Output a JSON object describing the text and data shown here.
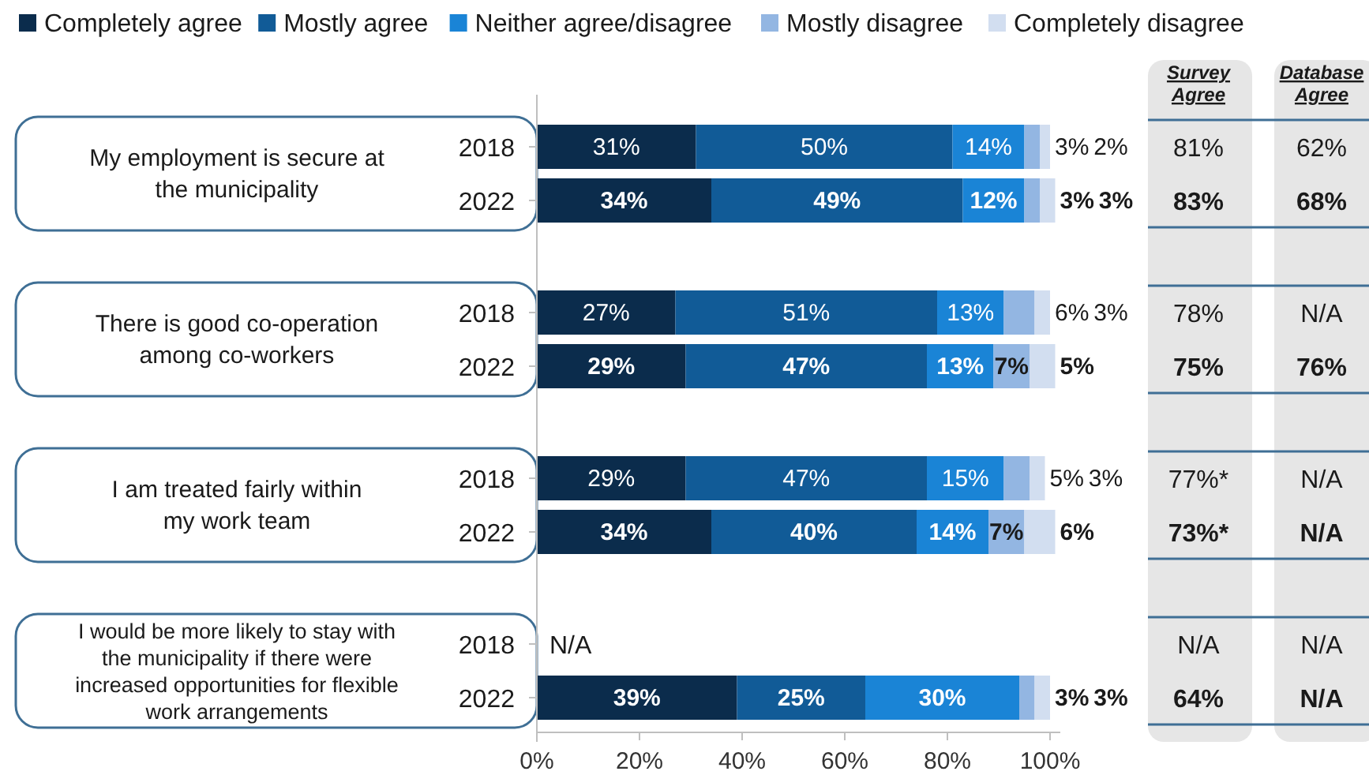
{
  "chart_data": {
    "type": "bar",
    "orientation": "horizontal",
    "stacked": true,
    "legend": "top left",
    "categories": [
      "2018",
      "2022",
      "2018",
      "2022",
      "2018",
      "2022",
      "2018",
      "2022"
    ],
    "series": [
      {
        "name": "Completely agree",
        "color": "#0b2c4c",
        "values": [
          31,
          34,
          27,
          29,
          29,
          34,
          null,
          39
        ],
        "value_labels": [
          "31%",
          "34%",
          "27%",
          "29%",
          "29%",
          "34%",
          null,
          "39%"
        ]
      },
      {
        "name": "Mostly agree",
        "color": "#115b97",
        "values": [
          50,
          49,
          51,
          47,
          47,
          40,
          null,
          25
        ],
        "value_labels": [
          "50%",
          "49%",
          "51%",
          "47%",
          "47%",
          "40%",
          null,
          "25%"
        ]
      },
      {
        "name": "Neither agree/disagree",
        "color": "#1a84d6",
        "values": [
          14,
          12,
          13,
          13,
          15,
          14,
          null,
          30
        ],
        "value_labels": [
          "14%",
          "12%",
          "13%",
          "13%",
          "15%",
          "14%",
          null,
          "30%"
        ]
      },
      {
        "name": "Mostly disagree",
        "color": "#93b6e2",
        "values": [
          3,
          3,
          6,
          7,
          5,
          7,
          null,
          3
        ],
        "value_labels": [
          "3%",
          "3%",
          "6%",
          "7%",
          "5%",
          "7%",
          null,
          "3%"
        ]
      },
      {
        "name": "Completely disagree",
        "color": "#d2def0",
        "values": [
          2,
          3,
          3,
          5,
          3,
          6,
          null,
          3
        ],
        "value_labels": [
          "2%",
          "3%",
          "3%",
          "5%",
          "3%",
          "6%",
          null,
          "3%"
        ]
      }
    ],
    "xlim": [
      0,
      102
    ],
    "xticks": [
      {
        "value": 0,
        "label": "0%"
      },
      {
        "value": 20,
        "label": "20%"
      },
      {
        "value": 40,
        "label": "40%"
      },
      {
        "value": 60,
        "label": "60%"
      },
      {
        "value": 80,
        "label": "80%"
      },
      {
        "value": 100,
        "label": "100%"
      }
    ],
    "annotations": [
      "My employment is secure at the municipality",
      "There is good co-operation among co-workers",
      "I am treated fairly within my work team",
      "I would be more likely to stay with the municipality if there were increased opportunities for flexible work arrangements",
      "N/A",
      "Survey Agree",
      "Database Agree",
      "81%",
      "62%",
      "83%",
      "68%",
      "78%",
      "N/A",
      "75%",
      "76%",
      "77%*",
      "N/A",
      "73%*",
      "N/A",
      "N/A",
      "N/A",
      "64%",
      "N/A"
    ]
  }
}
